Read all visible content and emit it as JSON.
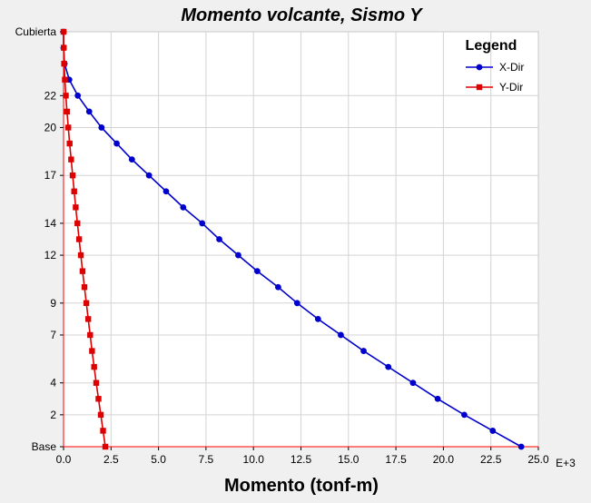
{
  "chart_data": {
    "type": "line",
    "title": "Momento volcante, Sismo Y",
    "xlabel": "Momento (tonf-m)",
    "ylabel": "",
    "x_scale_label": "E+3",
    "xlim": [
      0,
      25
    ],
    "ylim": [
      0,
      26
    ],
    "x_ticks": [
      0,
      2.5,
      5,
      7.5,
      10,
      12.5,
      15,
      17.5,
      20,
      22.5,
      25
    ],
    "x_tick_labels": [
      "0.0",
      "2.5",
      "5.0",
      "7.5",
      "10.0",
      "12.5",
      "15.0",
      "17.5",
      "20.0",
      "22.5",
      "25.0"
    ],
    "y_ticks": [
      0,
      2,
      4,
      7,
      9,
      12,
      14,
      17,
      20,
      22,
      26
    ],
    "y_tick_labels": [
      "Base",
      "2",
      "4",
      "7",
      "9",
      "12",
      "14",
      "17",
      "20",
      "22",
      "Cubierta"
    ],
    "grid": true,
    "legend": {
      "title": "Legend",
      "position": "top-right"
    },
    "series": [
      {
        "name": "X-Dir",
        "color": "#0000cc",
        "marker": "circle",
        "points": [
          {
            "x": 24.1,
            "y": 0
          },
          {
            "x": 22.6,
            "y": 1
          },
          {
            "x": 21.1,
            "y": 2
          },
          {
            "x": 19.7,
            "y": 3
          },
          {
            "x": 18.4,
            "y": 4
          },
          {
            "x": 17.1,
            "y": 5
          },
          {
            "x": 15.8,
            "y": 6
          },
          {
            "x": 14.6,
            "y": 7
          },
          {
            "x": 13.4,
            "y": 8
          },
          {
            "x": 12.3,
            "y": 9
          },
          {
            "x": 11.3,
            "y": 10
          },
          {
            "x": 10.2,
            "y": 11
          },
          {
            "x": 9.2,
            "y": 12
          },
          {
            "x": 8.2,
            "y": 13
          },
          {
            "x": 7.3,
            "y": 14
          },
          {
            "x": 6.3,
            "y": 15
          },
          {
            "x": 5.4,
            "y": 16
          },
          {
            "x": 4.5,
            "y": 17
          },
          {
            "x": 3.6,
            "y": 18
          },
          {
            "x": 2.8,
            "y": 19
          },
          {
            "x": 2.0,
            "y": 20
          },
          {
            "x": 1.35,
            "y": 21
          },
          {
            "x": 0.75,
            "y": 22
          },
          {
            "x": 0.3,
            "y": 23
          },
          {
            "x": 0.05,
            "y": 24
          },
          {
            "x": 0.0,
            "y": 25
          },
          {
            "x": 0.0,
            "y": 26
          }
        ]
      },
      {
        "name": "Y-Dir",
        "color": "#dd0000",
        "marker": "square",
        "points": [
          {
            "x": 2.2,
            "y": 0
          },
          {
            "x": 2.08,
            "y": 1
          },
          {
            "x": 1.96,
            "y": 2
          },
          {
            "x": 1.84,
            "y": 3
          },
          {
            "x": 1.72,
            "y": 4
          },
          {
            "x": 1.61,
            "y": 5
          },
          {
            "x": 1.5,
            "y": 6
          },
          {
            "x": 1.4,
            "y": 7
          },
          {
            "x": 1.3,
            "y": 8
          },
          {
            "x": 1.2,
            "y": 9
          },
          {
            "x": 1.1,
            "y": 10
          },
          {
            "x": 1.0,
            "y": 11
          },
          {
            "x": 0.91,
            "y": 12
          },
          {
            "x": 0.82,
            "y": 13
          },
          {
            "x": 0.73,
            "y": 14
          },
          {
            "x": 0.64,
            "y": 15
          },
          {
            "x": 0.56,
            "y": 16
          },
          {
            "x": 0.48,
            "y": 17
          },
          {
            "x": 0.4,
            "y": 18
          },
          {
            "x": 0.32,
            "y": 19
          },
          {
            "x": 0.25,
            "y": 20
          },
          {
            "x": 0.18,
            "y": 21
          },
          {
            "x": 0.12,
            "y": 22
          },
          {
            "x": 0.07,
            "y": 23
          },
          {
            "x": 0.03,
            "y": 24
          },
          {
            "x": 0.01,
            "y": 25
          },
          {
            "x": 0.0,
            "y": 26
          }
        ]
      }
    ]
  }
}
